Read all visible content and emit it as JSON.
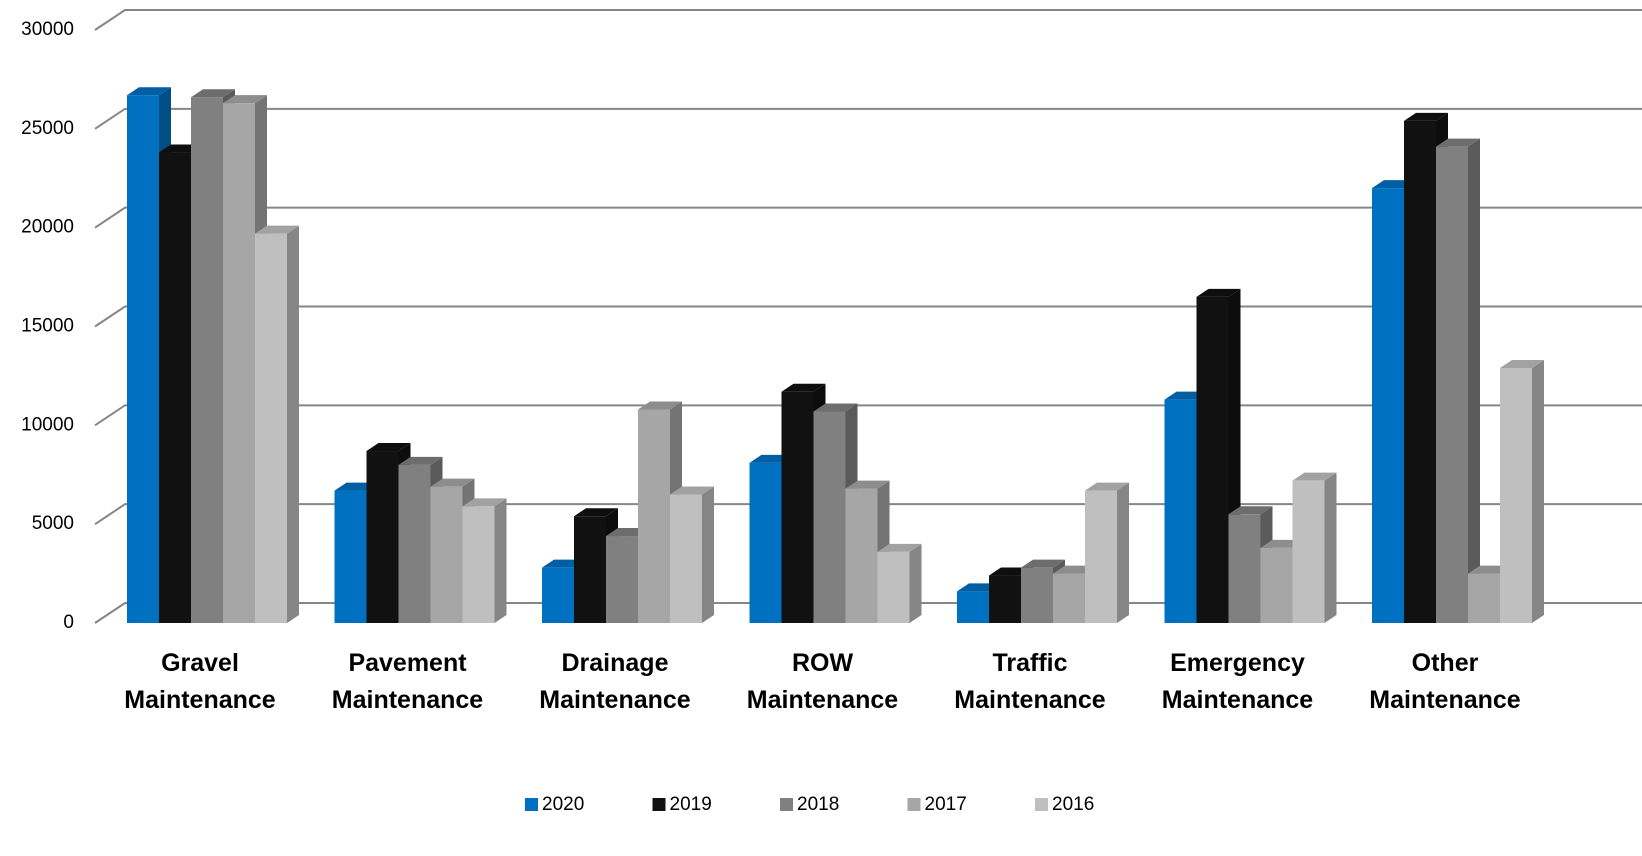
{
  "chart_data": {
    "type": "bar3d",
    "categories": [
      "Gravel Maintenance",
      "Pavement Maintenance",
      "Drainage Maintenance",
      "ROW Maintenance",
      "Traffic Maintenance",
      "Emergency Maintenance",
      "Other Maintenance"
    ],
    "series": [
      {
        "name": "2020",
        "color": "#0070c0",
        "values": [
          26700,
          6700,
          2800,
          8100,
          1600,
          11300,
          22000
        ]
      },
      {
        "name": "2019",
        "color": "#111111",
        "values": [
          23800,
          8700,
          5400,
          11700,
          2400,
          16500,
          25400
        ]
      },
      {
        "name": "2018",
        "color": "#808080",
        "values": [
          26600,
          8000,
          4400,
          10700,
          2800,
          5500,
          24100
        ]
      },
      {
        "name": "2017",
        "color": "#a6a6a6",
        "values": [
          26300,
          6900,
          10800,
          6800,
          2500,
          3800,
          2500
        ]
      },
      {
        "name": "2016",
        "color": "#bfbfbf",
        "values": [
          19700,
          5900,
          6500,
          3600,
          6700,
          7200,
          12900
        ]
      }
    ],
    "ylim": [
      0,
      30000
    ],
    "yticks": [
      0,
      5000,
      10000,
      15000,
      20000,
      25000,
      30000
    ],
    "grid": true,
    "legend": "bottom"
  }
}
